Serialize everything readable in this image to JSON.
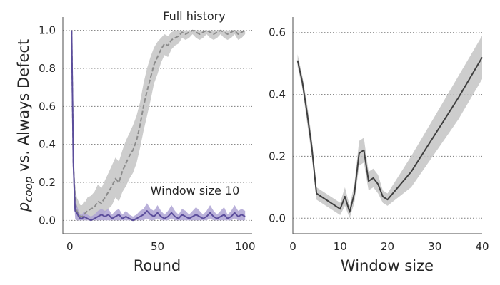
{
  "chart_data": [
    {
      "type": "line",
      "ylabel_main": "p",
      "ylabel_sub": "coop",
      "ylabel_rest": " vs. Always Defect",
      "xlabel": "Round",
      "xlim": [
        -4,
        104
      ],
      "ylim": [
        -0.07,
        1.07
      ],
      "xticks": [
        "0",
        "50",
        "100"
      ],
      "xtick_values": [
        0,
        50,
        100
      ],
      "yticks": [
        "0.0",
        "0.2",
        "0.4",
        "0.6",
        "0.8",
        "1.0"
      ],
      "ytick_values": [
        0.0,
        0.2,
        0.4,
        0.6,
        0.8,
        1.0
      ],
      "grid": "y dotted",
      "series": [
        {
          "name": "Full history",
          "color": "#8c8c8c",
          "band_color": "#c4c4c4",
          "style": "dashed",
          "x": [
            1,
            2,
            3,
            4,
            5,
            6,
            7,
            8,
            9,
            10,
            12,
            14,
            16,
            18,
            20,
            22,
            24,
            26,
            28,
            30,
            32,
            34,
            36,
            38,
            40,
            42,
            44,
            46,
            48,
            50,
            52,
            54,
            56,
            58,
            60,
            62,
            64,
            66,
            68,
            70,
            72,
            74,
            76,
            78,
            80,
            82,
            84,
            86,
            88,
            90,
            92,
            94,
            96,
            98,
            100
          ],
          "y": [
            1.0,
            0.3,
            0.1,
            0.05,
            0.03,
            0.02,
            0.02,
            0.03,
            0.04,
            0.05,
            0.06,
            0.07,
            0.1,
            0.09,
            0.12,
            0.15,
            0.18,
            0.22,
            0.2,
            0.26,
            0.3,
            0.34,
            0.37,
            0.42,
            0.5,
            0.6,
            0.68,
            0.75,
            0.82,
            0.86,
            0.9,
            0.93,
            0.92,
            0.95,
            0.96,
            0.97,
            0.99,
            0.98,
            0.99,
            1.0,
            0.99,
            0.98,
            0.99,
            1.0,
            0.99,
            0.98,
            0.99,
            1.0,
            0.99,
            0.98,
            0.99,
            1.0,
            0.98,
            0.99,
            1.0
          ],
          "lower": [
            1.0,
            0.2,
            0.03,
            0.0,
            0.0,
            0.0,
            0.0,
            0.0,
            0.0,
            0.0,
            0.0,
            0.0,
            0.02,
            0.02,
            0.04,
            0.06,
            0.08,
            0.12,
            0.1,
            0.15,
            0.18,
            0.22,
            0.25,
            0.3,
            0.38,
            0.47,
            0.55,
            0.63,
            0.72,
            0.77,
            0.83,
            0.87,
            0.86,
            0.9,
            0.92,
            0.93,
            0.96,
            0.95,
            0.96,
            0.98,
            0.96,
            0.95,
            0.96,
            0.98,
            0.96,
            0.95,
            0.96,
            0.98,
            0.96,
            0.95,
            0.96,
            0.98,
            0.95,
            0.96,
            0.98
          ],
          "upper": [
            1.0,
            0.4,
            0.18,
            0.12,
            0.1,
            0.08,
            0.08,
            0.1,
            0.1,
            0.12,
            0.13,
            0.15,
            0.19,
            0.17,
            0.21,
            0.25,
            0.29,
            0.33,
            0.31,
            0.37,
            0.42,
            0.46,
            0.5,
            0.55,
            0.62,
            0.72,
            0.8,
            0.86,
            0.91,
            0.94,
            0.96,
            0.98,
            0.97,
            0.99,
            1.0,
            1.0,
            1.0,
            1.0,
            1.0,
            1.0,
            1.0,
            1.0,
            1.0,
            1.0,
            1.0,
            1.0,
            1.0,
            1.0,
            1.0,
            1.0,
            1.0,
            1.0,
            1.0,
            1.0,
            1.0
          ]
        },
        {
          "name": "Window size 10",
          "color": "#5b4d9c",
          "band_color": "#aea3d3",
          "style": "solid",
          "x": [
            1,
            2,
            3,
            4,
            5,
            6,
            7,
            8,
            10,
            12,
            14,
            16,
            18,
            20,
            22,
            24,
            26,
            28,
            30,
            32,
            34,
            36,
            38,
            40,
            42,
            44,
            46,
            48,
            50,
            52,
            54,
            56,
            58,
            60,
            62,
            64,
            66,
            68,
            70,
            72,
            74,
            76,
            78,
            80,
            82,
            84,
            86,
            88,
            90,
            92,
            94,
            96,
            98,
            100
          ],
          "y": [
            1.0,
            0.3,
            0.05,
            0.04,
            0.02,
            0.01,
            0.01,
            0.02,
            0.01,
            0.0,
            0.01,
            0.02,
            0.03,
            0.02,
            0.03,
            0.01,
            0.02,
            0.03,
            0.01,
            0.02,
            0.01,
            0.0,
            0.01,
            0.02,
            0.03,
            0.05,
            0.03,
            0.02,
            0.04,
            0.02,
            0.01,
            0.02,
            0.04,
            0.02,
            0.01,
            0.03,
            0.02,
            0.01,
            0.02,
            0.03,
            0.02,
            0.01,
            0.02,
            0.04,
            0.02,
            0.01,
            0.02,
            0.03,
            0.01,
            0.02,
            0.04,
            0.02,
            0.03,
            0.02
          ],
          "lower": [
            1.0,
            0.18,
            0.01,
            0.0,
            0.0,
            0.0,
            0.0,
            0.0,
            0.0,
            0.0,
            0.0,
            0.0,
            0.0,
            0.0,
            0.0,
            0.0,
            0.0,
            0.0,
            0.0,
            0.0,
            0.0,
            0.0,
            0.0,
            0.0,
            0.0,
            0.01,
            0.0,
            0.0,
            0.01,
            0.0,
            0.0,
            0.0,
            0.01,
            0.0,
            0.0,
            0.0,
            0.0,
            0.0,
            0.0,
            0.0,
            0.0,
            0.0,
            0.0,
            0.01,
            0.0,
            0.0,
            0.0,
            0.0,
            0.0,
            0.0,
            0.01,
            0.0,
            0.0,
            0.0
          ],
          "upper": [
            1.0,
            0.42,
            0.1,
            0.08,
            0.05,
            0.03,
            0.03,
            0.05,
            0.03,
            0.02,
            0.03,
            0.05,
            0.06,
            0.05,
            0.06,
            0.03,
            0.05,
            0.06,
            0.03,
            0.05,
            0.03,
            0.02,
            0.03,
            0.05,
            0.06,
            0.09,
            0.06,
            0.05,
            0.08,
            0.05,
            0.03,
            0.05,
            0.08,
            0.05,
            0.03,
            0.06,
            0.05,
            0.03,
            0.05,
            0.07,
            0.05,
            0.03,
            0.05,
            0.08,
            0.05,
            0.03,
            0.05,
            0.07,
            0.03,
            0.05,
            0.08,
            0.05,
            0.06,
            0.05
          ]
        }
      ]
    },
    {
      "type": "line",
      "xlabel": "Window size",
      "xlim": [
        0,
        40
      ],
      "ylim": [
        -0.05,
        0.65
      ],
      "xticks": [
        "0",
        "10",
        "20",
        "30",
        "40"
      ],
      "xtick_values": [
        0,
        10,
        20,
        30,
        40
      ],
      "yticks": [
        "0.0",
        "0.2",
        "0.4",
        "0.6"
      ],
      "ytick_values": [
        0.0,
        0.2,
        0.4,
        0.6
      ],
      "grid": "y dotted",
      "series": [
        {
          "color": "#3f3f3f",
          "band_color": "#c4c4c4",
          "x": [
            1,
            2,
            3,
            4,
            5,
            10,
            11,
            12,
            13,
            14,
            15,
            16,
            17,
            18,
            19,
            20,
            25,
            30,
            35,
            40
          ],
          "y": [
            0.51,
            0.44,
            0.34,
            0.23,
            0.08,
            0.03,
            0.07,
            0.02,
            0.08,
            0.21,
            0.22,
            0.12,
            0.13,
            0.11,
            0.07,
            0.06,
            0.15,
            0.27,
            0.39,
            0.52
          ],
          "lower": [
            0.49,
            0.42,
            0.31,
            0.2,
            0.06,
            0.01,
            0.04,
            0.0,
            0.05,
            0.17,
            0.18,
            0.09,
            0.1,
            0.08,
            0.05,
            0.04,
            0.1,
            0.21,
            0.32,
            0.45
          ],
          "upper": [
            0.53,
            0.46,
            0.37,
            0.26,
            0.1,
            0.05,
            0.1,
            0.04,
            0.11,
            0.25,
            0.26,
            0.15,
            0.16,
            0.14,
            0.09,
            0.08,
            0.2,
            0.33,
            0.46,
            0.59
          ]
        }
      ]
    }
  ]
}
